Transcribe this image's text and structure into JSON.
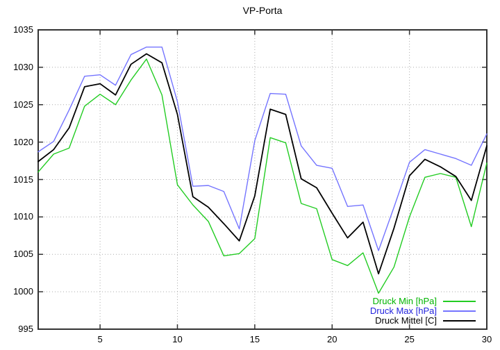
{
  "chart_data": {
    "type": "line",
    "title": "VP-Porta",
    "xlabel": "",
    "ylabel": "",
    "xlim": [
      1,
      30
    ],
    "ylim": [
      995,
      1035
    ],
    "xticks": [
      5,
      10,
      15,
      20,
      25,
      30
    ],
    "yticks": [
      995,
      1000,
      1005,
      1010,
      1015,
      1020,
      1025,
      1030,
      1035
    ],
    "grid": true,
    "legend_position": "bottom-right",
    "x": [
      1,
      2,
      3,
      4,
      5,
      6,
      7,
      8,
      9,
      10,
      11,
      12,
      13,
      14,
      15,
      16,
      17,
      18,
      19,
      20,
      21,
      22,
      23,
      24,
      25,
      26,
      27,
      28,
      29,
      30
    ],
    "series": [
      {
        "name": "Druck Min [hPa]",
        "color": "#22cc22",
        "text_color": "#00b400",
        "width": 1.4,
        "values": [
          1016.0,
          1018.4,
          1019.2,
          1024.8,
          1026.4,
          1025.0,
          1028.3,
          1031.1,
          1026.3,
          1014.3,
          1011.6,
          1009.4,
          1004.8,
          1005.1,
          1007.1,
          1020.6,
          1019.9,
          1011.8,
          1011.1,
          1004.3,
          1003.5,
          1005.2,
          999.8,
          1003.3,
          1010.0,
          1015.3,
          1015.8,
          1015.3,
          1008.7,
          1017.2
        ]
      },
      {
        "name": "Druck Max [hPa]",
        "color": "#7474ff",
        "text_color": "#2222dd",
        "width": 1.4,
        "values": [
          1018.7,
          1020.1,
          1024.3,
          1028.8,
          1029.0,
          1027.6,
          1031.7,
          1032.7,
          1032.7,
          1025.4,
          1014.1,
          1014.2,
          1013.4,
          1008.4,
          1020.2,
          1026.5,
          1026.4,
          1019.5,
          1016.9,
          1016.5,
          1011.4,
          1011.6,
          1005.5,
          1011.3,
          1017.3,
          1019.0,
          1018.4,
          1017.8,
          1016.9,
          1021.1
        ]
      },
      {
        "name": "Druck Mittel [C]",
        "color": "#000000",
        "text_color": "#000000",
        "width": 1.8,
        "values": [
          1017.4,
          1019.0,
          1021.9,
          1027.4,
          1027.8,
          1026.3,
          1030.4,
          1031.8,
          1030.6,
          1023.7,
          1012.7,
          1011.3,
          1009.1,
          1006.8,
          1012.8,
          1024.4,
          1023.7,
          1015.1,
          1013.9,
          1010.5,
          1007.2,
          1009.3,
          1002.4,
          1008.5,
          1015.5,
          1017.7,
          1016.7,
          1015.4,
          1012.2,
          1019.5
        ]
      }
    ],
    "style": {
      "grid_color": "#aaaaaa",
      "border_color": "#333333",
      "background": "#ffffff"
    }
  }
}
